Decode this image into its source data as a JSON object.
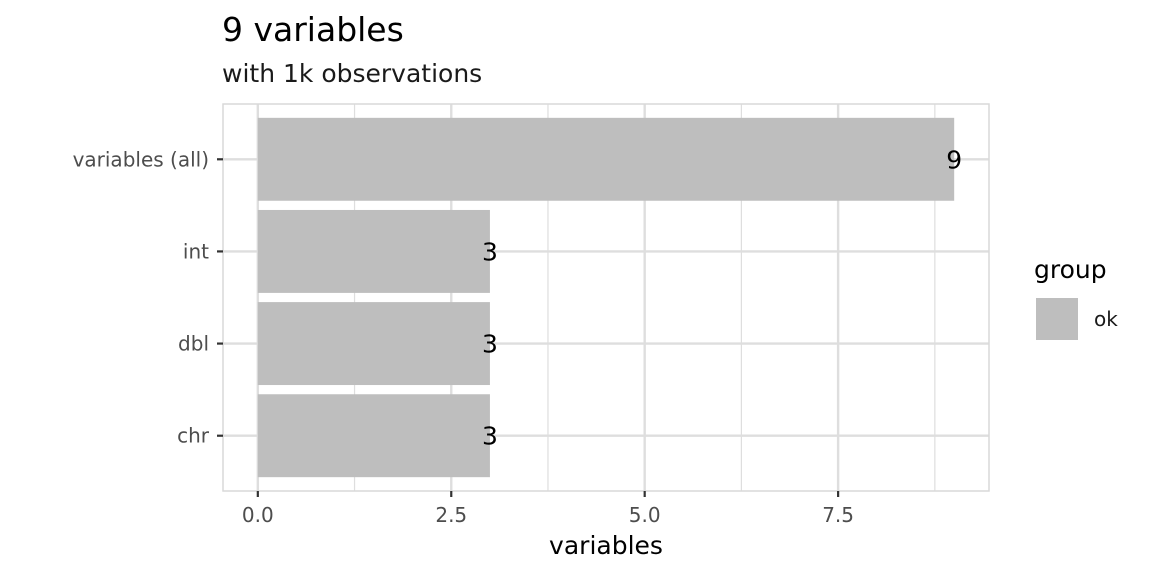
{
  "chart_data": {
    "type": "bar",
    "orientation": "horizontal",
    "title": "9 variables",
    "subtitle": "with 1k observations",
    "xlabel": "variables",
    "ylabel": "",
    "categories": [
      "variables (all)",
      "int",
      "dbl",
      "chr"
    ],
    "series": [
      {
        "name": "ok",
        "values": [
          9,
          3,
          3,
          3
        ]
      }
    ],
    "data_labels": [
      "9",
      "3",
      "3",
      "3"
    ],
    "xlim": [
      -0.45,
      9.45
    ],
    "xticks": [
      0.0,
      2.5,
      5.0,
      7.5
    ],
    "xtick_labels": [
      "0.0",
      "2.5",
      "5.0",
      "7.5"
    ],
    "grid": true,
    "legend": {
      "title": "group",
      "position": "right",
      "entries": [
        "ok"
      ]
    },
    "colors": {
      "bar": "#bebebe",
      "grid": "#dedede",
      "panel_border": "#d9d9d9"
    }
  }
}
